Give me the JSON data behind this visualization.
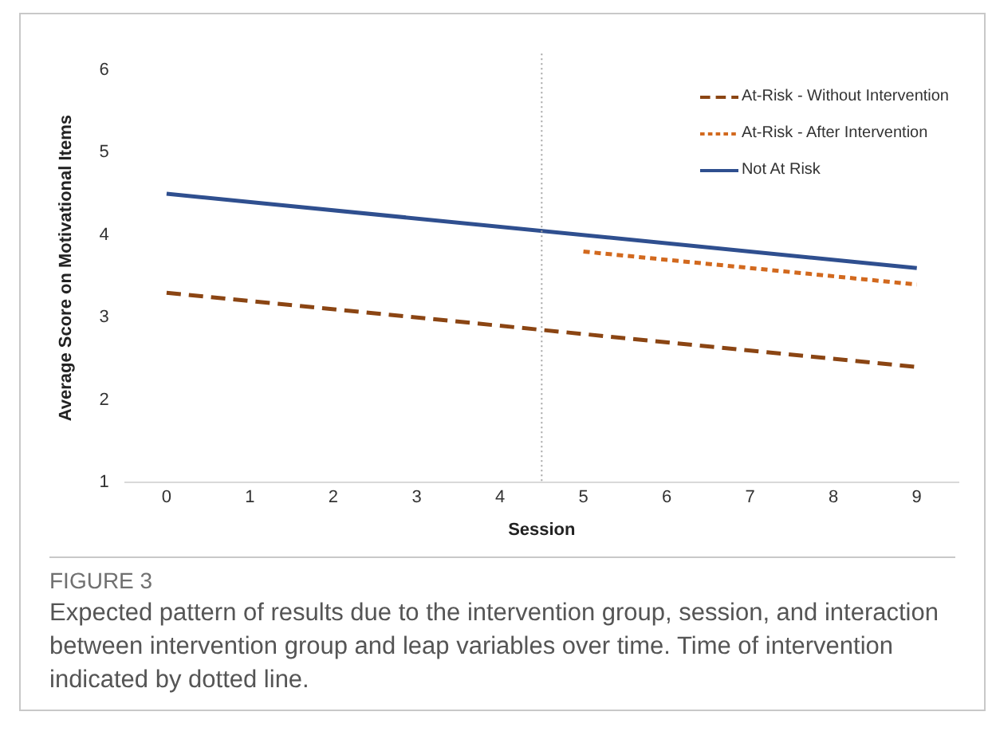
{
  "chart_data": {
    "type": "line",
    "xlabel": "Session",
    "ylabel": "Average Score on Motivational Items",
    "xlim": [
      -0.5,
      9.5
    ],
    "xticks": [
      0,
      1,
      2,
      3,
      4,
      5,
      6,
      7,
      8,
      9
    ],
    "ylim": [
      1,
      6.2
    ],
    "yticks": [
      1,
      2,
      3,
      4,
      5,
      6
    ],
    "series": [
      {
        "name": "At-Risk - Without Intervention",
        "color": "#8b4513",
        "line_style": "dashed",
        "x": [
          0,
          9
        ],
        "values": [
          3.3,
          2.4
        ]
      },
      {
        "name": "At-Risk - After Intervention",
        "color": "#d2691e",
        "line_style": "dotted",
        "x": [
          5,
          9
        ],
        "values": [
          3.8,
          3.4
        ]
      },
      {
        "name": "Not At Risk",
        "color": "#2f4f8f",
        "line_style": "solid",
        "x": [
          0,
          9
        ],
        "values": [
          4.5,
          3.6
        ]
      }
    ],
    "ref_lines": [
      {
        "axis": "x",
        "value": 4.5,
        "color": "#a6a6a6",
        "line_style": "dotted"
      }
    ],
    "grid": false,
    "legend": "top right",
    "marker": "none",
    "annotations": [
      "FIGURE 3",
      "Expected pattern of results due to the intervention group, session, and interaction between intervention group and leap variables over time. Time of intervention indicated by dotted line."
    ]
  }
}
